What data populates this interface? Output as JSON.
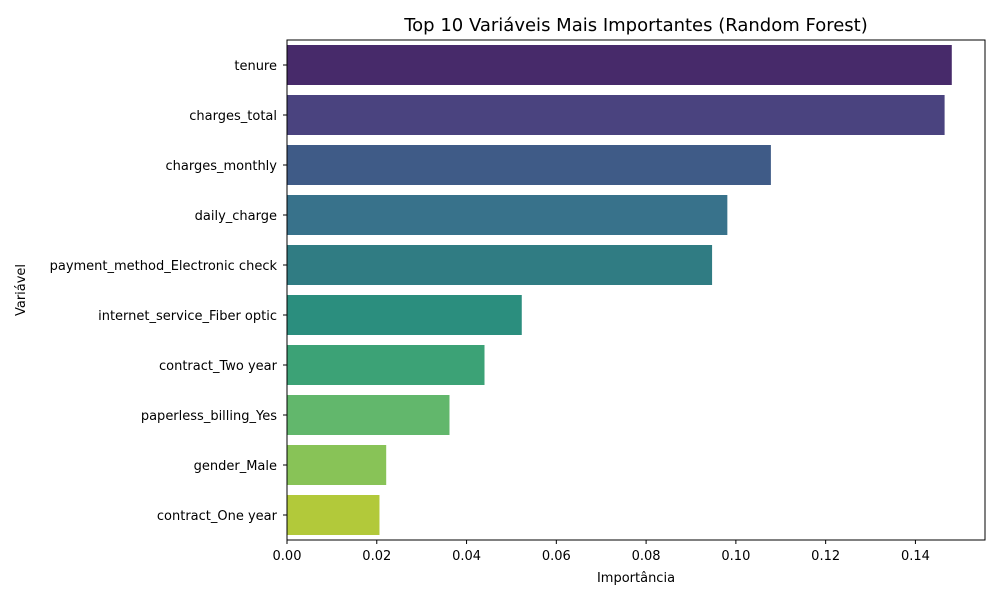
{
  "chart_data": {
    "type": "bar",
    "orientation": "horizontal",
    "title": "Top 10 Variáveis Mais Importantes (Random Forest)",
    "xlabel": "Importância",
    "ylabel": "Variável",
    "xlim": [
      0,
      0.1555
    ],
    "x_ticks": [
      0.0,
      0.02,
      0.04,
      0.06,
      0.08,
      0.1,
      0.12,
      0.14
    ],
    "x_tick_labels": [
      "0.00",
      "0.02",
      "0.04",
      "0.06",
      "0.08",
      "0.10",
      "0.12",
      "0.14"
    ],
    "grid": false,
    "categories": [
      "tenure",
      "charges_total",
      "charges_monthly",
      "daily_charge",
      "payment_method_Electronic check",
      "internet_service_Fiber optic",
      "contract_Two year",
      "paperless_billing_Yes",
      "gender_Male",
      "contract_One year"
    ],
    "values": [
      0.1481,
      0.1465,
      0.1078,
      0.0981,
      0.0947,
      0.0523,
      0.044,
      0.0362,
      0.0221,
      0.0206
    ],
    "colors": [
      "#472A6A",
      "#4A437F",
      "#3F5B87",
      "#38728B",
      "#307C83",
      "#2B8E7E",
      "#3CA276",
      "#62B76C",
      "#88C357",
      "#B2C93A"
    ]
  }
}
